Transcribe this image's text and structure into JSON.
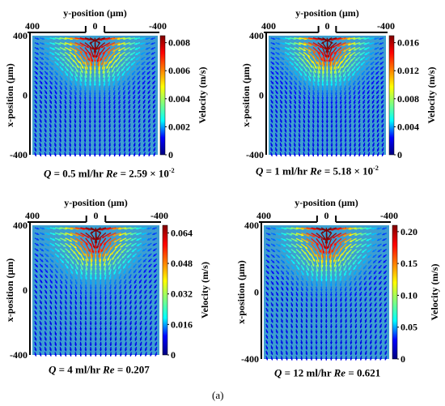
{
  "figure_label": "(a)",
  "colors": {
    "background_fluid": "#3d9fd0",
    "colormap": [
      "#00007f",
      "#0000ff",
      "#00ffff",
      "#7fff7f",
      "#ffff00",
      "#ff7f00",
      "#ff0000",
      "#7f0000"
    ]
  },
  "chart_data": [
    {
      "type": "heatmap",
      "plot_kind": "velocity vector field",
      "xlabel": "y-position (μm)",
      "ylabel": "x-position (μm)",
      "x_ticks": [
        "400",
        "0",
        "-400"
      ],
      "y_ticks": [
        "400",
        "0",
        "-400"
      ],
      "xlim": [
        400,
        -400
      ],
      "ylim": [
        -400,
        400
      ],
      "colorbar": {
        "label": "Velocity (m/s)",
        "min": 0,
        "max": 0.0085,
        "ticks": [
          "0.008",
          "0.006",
          "0.004",
          "0.002",
          "0"
        ],
        "tick_values": [
          0.008,
          0.006,
          0.004,
          0.002,
          0
        ]
      },
      "caption": {
        "q_label": "Q",
        "q_value": " = 0.5 ml/hr ",
        "re_label": "Re",
        "re_value": " = 2.59 × 10",
        "re_exp": "-2"
      }
    },
    {
      "type": "heatmap",
      "plot_kind": "velocity vector field",
      "xlabel": "y-position (μm)",
      "ylabel": "x-position (μm)",
      "x_ticks": [
        "400",
        "0",
        "-400"
      ],
      "y_ticks": [
        "400",
        "0",
        "-400"
      ],
      "xlim": [
        400,
        -400
      ],
      "ylim": [
        -400,
        400
      ],
      "colorbar": {
        "label": "Velocity (m/s)",
        "min": 0,
        "max": 0.017,
        "ticks": [
          "0.016",
          "0.012",
          "0.008",
          "0.004",
          "0"
        ],
        "tick_values": [
          0.016,
          0.012,
          0.008,
          0.004,
          0
        ]
      },
      "caption": {
        "q_label": "Q",
        "q_value": " = 1 ml/hr ",
        "re_label": "Re",
        "re_value": " = 5.18 × 10",
        "re_exp": "-2"
      }
    },
    {
      "type": "heatmap",
      "plot_kind": "velocity vector field",
      "xlabel": "y-position (μm)",
      "ylabel": "x-position (μm)",
      "x_ticks": [
        "400",
        "0",
        "-400"
      ],
      "y_ticks": [
        "400",
        "0",
        "-400"
      ],
      "xlim": [
        400,
        -400
      ],
      "ylim": [
        -400,
        400
      ],
      "colorbar": {
        "label": "Velocity (m/s)",
        "min": 0,
        "max": 0.068,
        "ticks": [
          "0.064",
          "0.048",
          "0.032",
          "0.016",
          "0"
        ],
        "tick_values": [
          0.064,
          0.048,
          0.032,
          0.016,
          0
        ]
      },
      "caption": {
        "q_label": "Q",
        "q_value": " = 4 ml/hr ",
        "re_label": "Re",
        "re_value": " = 0.207",
        "re_exp": ""
      }
    },
    {
      "type": "heatmap",
      "plot_kind": "velocity vector field",
      "xlabel": "y-position (μm)",
      "ylabel": "x-position (μm)",
      "x_ticks": [
        "400",
        "0",
        "-400"
      ],
      "y_ticks": [
        "400",
        "0",
        "-400"
      ],
      "xlim": [
        400,
        -400
      ],
      "ylim": [
        -400,
        400
      ],
      "colorbar": {
        "label": "Velocity (m/s)",
        "min": 0,
        "max": 0.21,
        "ticks": [
          "0.20",
          "0.15",
          "0.10",
          "0.05",
          "0"
        ],
        "tick_values": [
          0.2,
          0.15,
          0.1,
          0.05,
          0
        ]
      },
      "caption": {
        "q_label": "Q",
        "q_value": " = 12 ml/hr ",
        "re_label": "Re",
        "re_value": " = 0.621",
        "re_exp": ""
      }
    }
  ]
}
